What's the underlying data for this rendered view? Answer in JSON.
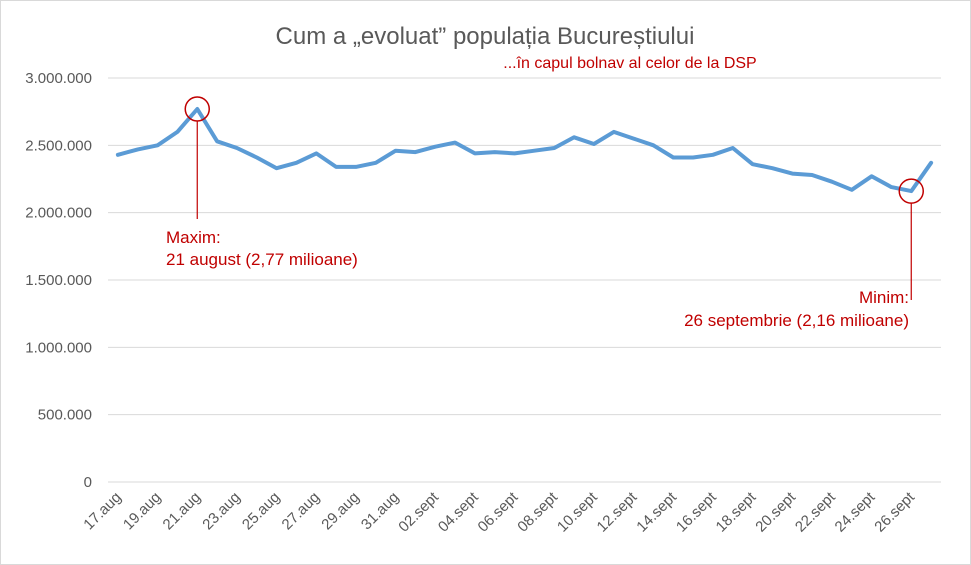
{
  "chart_data": {
    "type": "line",
    "title": "Cum a „evoluat” populația Bucureștiului",
    "subtitle": "...în capul bolnav al celor de la DSP",
    "ylim": [
      0,
      3000000
    ],
    "yticks": [
      "0",
      "500.000",
      "1.000.000",
      "1.500.000",
      "2.000.000",
      "2.500.000",
      "3.000.000"
    ],
    "ytick_values": [
      0,
      500000,
      1000000,
      1500000,
      2000000,
      2500000,
      3000000
    ],
    "grid": true,
    "legend": "none",
    "line_color": "#5b9bd5",
    "annotation_color": "#c00000",
    "x": [
      "17.aug",
      "18.aug",
      "19.aug",
      "20.aug",
      "21.aug",
      "22.aug",
      "23.aug",
      "24.aug",
      "25.aug",
      "26.aug",
      "27.aug",
      "28.aug",
      "29.aug",
      "30.aug",
      "31.aug",
      "01.sept",
      "02.sept",
      "03.sept",
      "04.sept",
      "05.sept",
      "06.sept",
      "07.sept",
      "08.sept",
      "09.sept",
      "10.sept",
      "11.sept",
      "12.sept",
      "13.sept",
      "14.sept",
      "15.sept",
      "16.sept",
      "17.sept",
      "18.sept",
      "19.sept",
      "20.sept",
      "21.sept",
      "22.sept",
      "23.sept",
      "24.sept",
      "25.sept",
      "26.sept",
      "27.sept"
    ],
    "xtick_labels_shown": [
      "17.aug",
      "19.aug",
      "21.aug",
      "23.aug",
      "25.aug",
      "27.aug",
      "29.aug",
      "31.aug",
      "02.sept",
      "04.sept",
      "06.sept",
      "08.sept",
      "10.sept",
      "12.sept",
      "14.sept",
      "16.sept",
      "18.sept",
      "20.sept",
      "22.sept",
      "24.sept",
      "26.sept"
    ],
    "series": [
      {
        "values": [
          2430000,
          2470000,
          2500000,
          2600000,
          2770000,
          2530000,
          2480000,
          2410000,
          2330000,
          2370000,
          2440000,
          2340000,
          2340000,
          2370000,
          2460000,
          2450000,
          2490000,
          2520000,
          2440000,
          2450000,
          2440000,
          2460000,
          2480000,
          2560000,
          2510000,
          2600000,
          2550000,
          2500000,
          2410000,
          2410000,
          2430000,
          2480000,
          2360000,
          2330000,
          2290000,
          2280000,
          2230000,
          2170000,
          2270000,
          2190000,
          2160000,
          2370000
        ]
      }
    ],
    "annotations": [
      {
        "index": 4,
        "lines": [
          "Maxim:",
          "21 august (2,77 milioane)"
        ]
      },
      {
        "index": 40,
        "lines": [
          "Minim:",
          "26 septembrie (2,16 milioane)"
        ]
      }
    ]
  }
}
